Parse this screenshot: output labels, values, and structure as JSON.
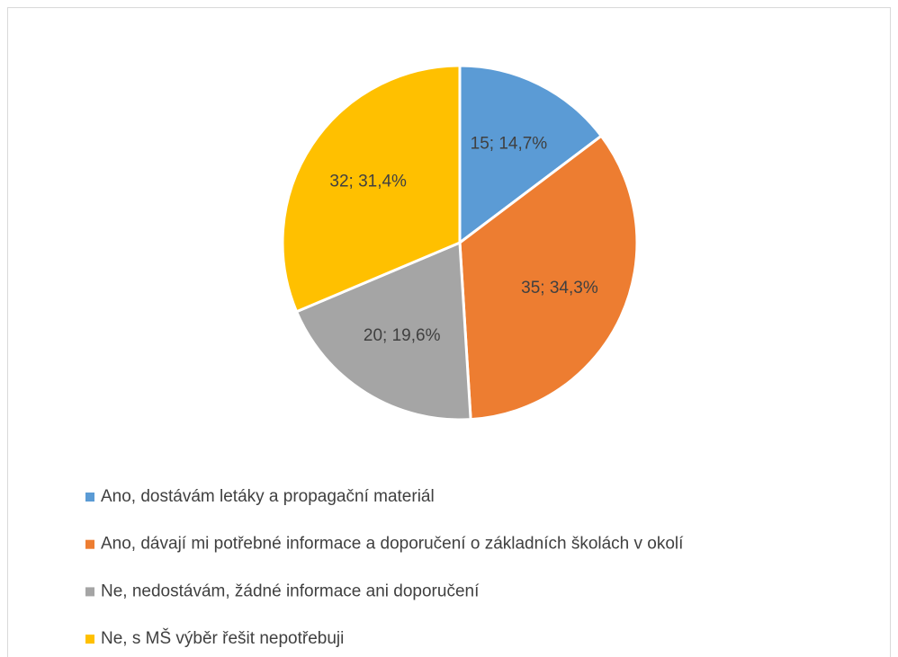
{
  "chart_data": {
    "type": "pie",
    "categories": [
      "Ano, dostávám letáky a propagační materiál",
      "Ano, dávají mi potřebné informace a doporučení o základních školách v okolí",
      "Ne, nedostávám, žádné informace ani doporučení",
      "Ne, s MŠ výběr řešit nepotřebuji"
    ],
    "values": [
      15,
      35,
      20,
      32
    ],
    "value_labels": [
      "15; 14,7%",
      "35; 34,3%",
      "20; 19,6%",
      "32; 31,4%"
    ],
    "colors": [
      "#5b9bd5",
      "#ed7d31",
      "#a5a5a5",
      "#ffc000"
    ],
    "legend": "bottom"
  }
}
